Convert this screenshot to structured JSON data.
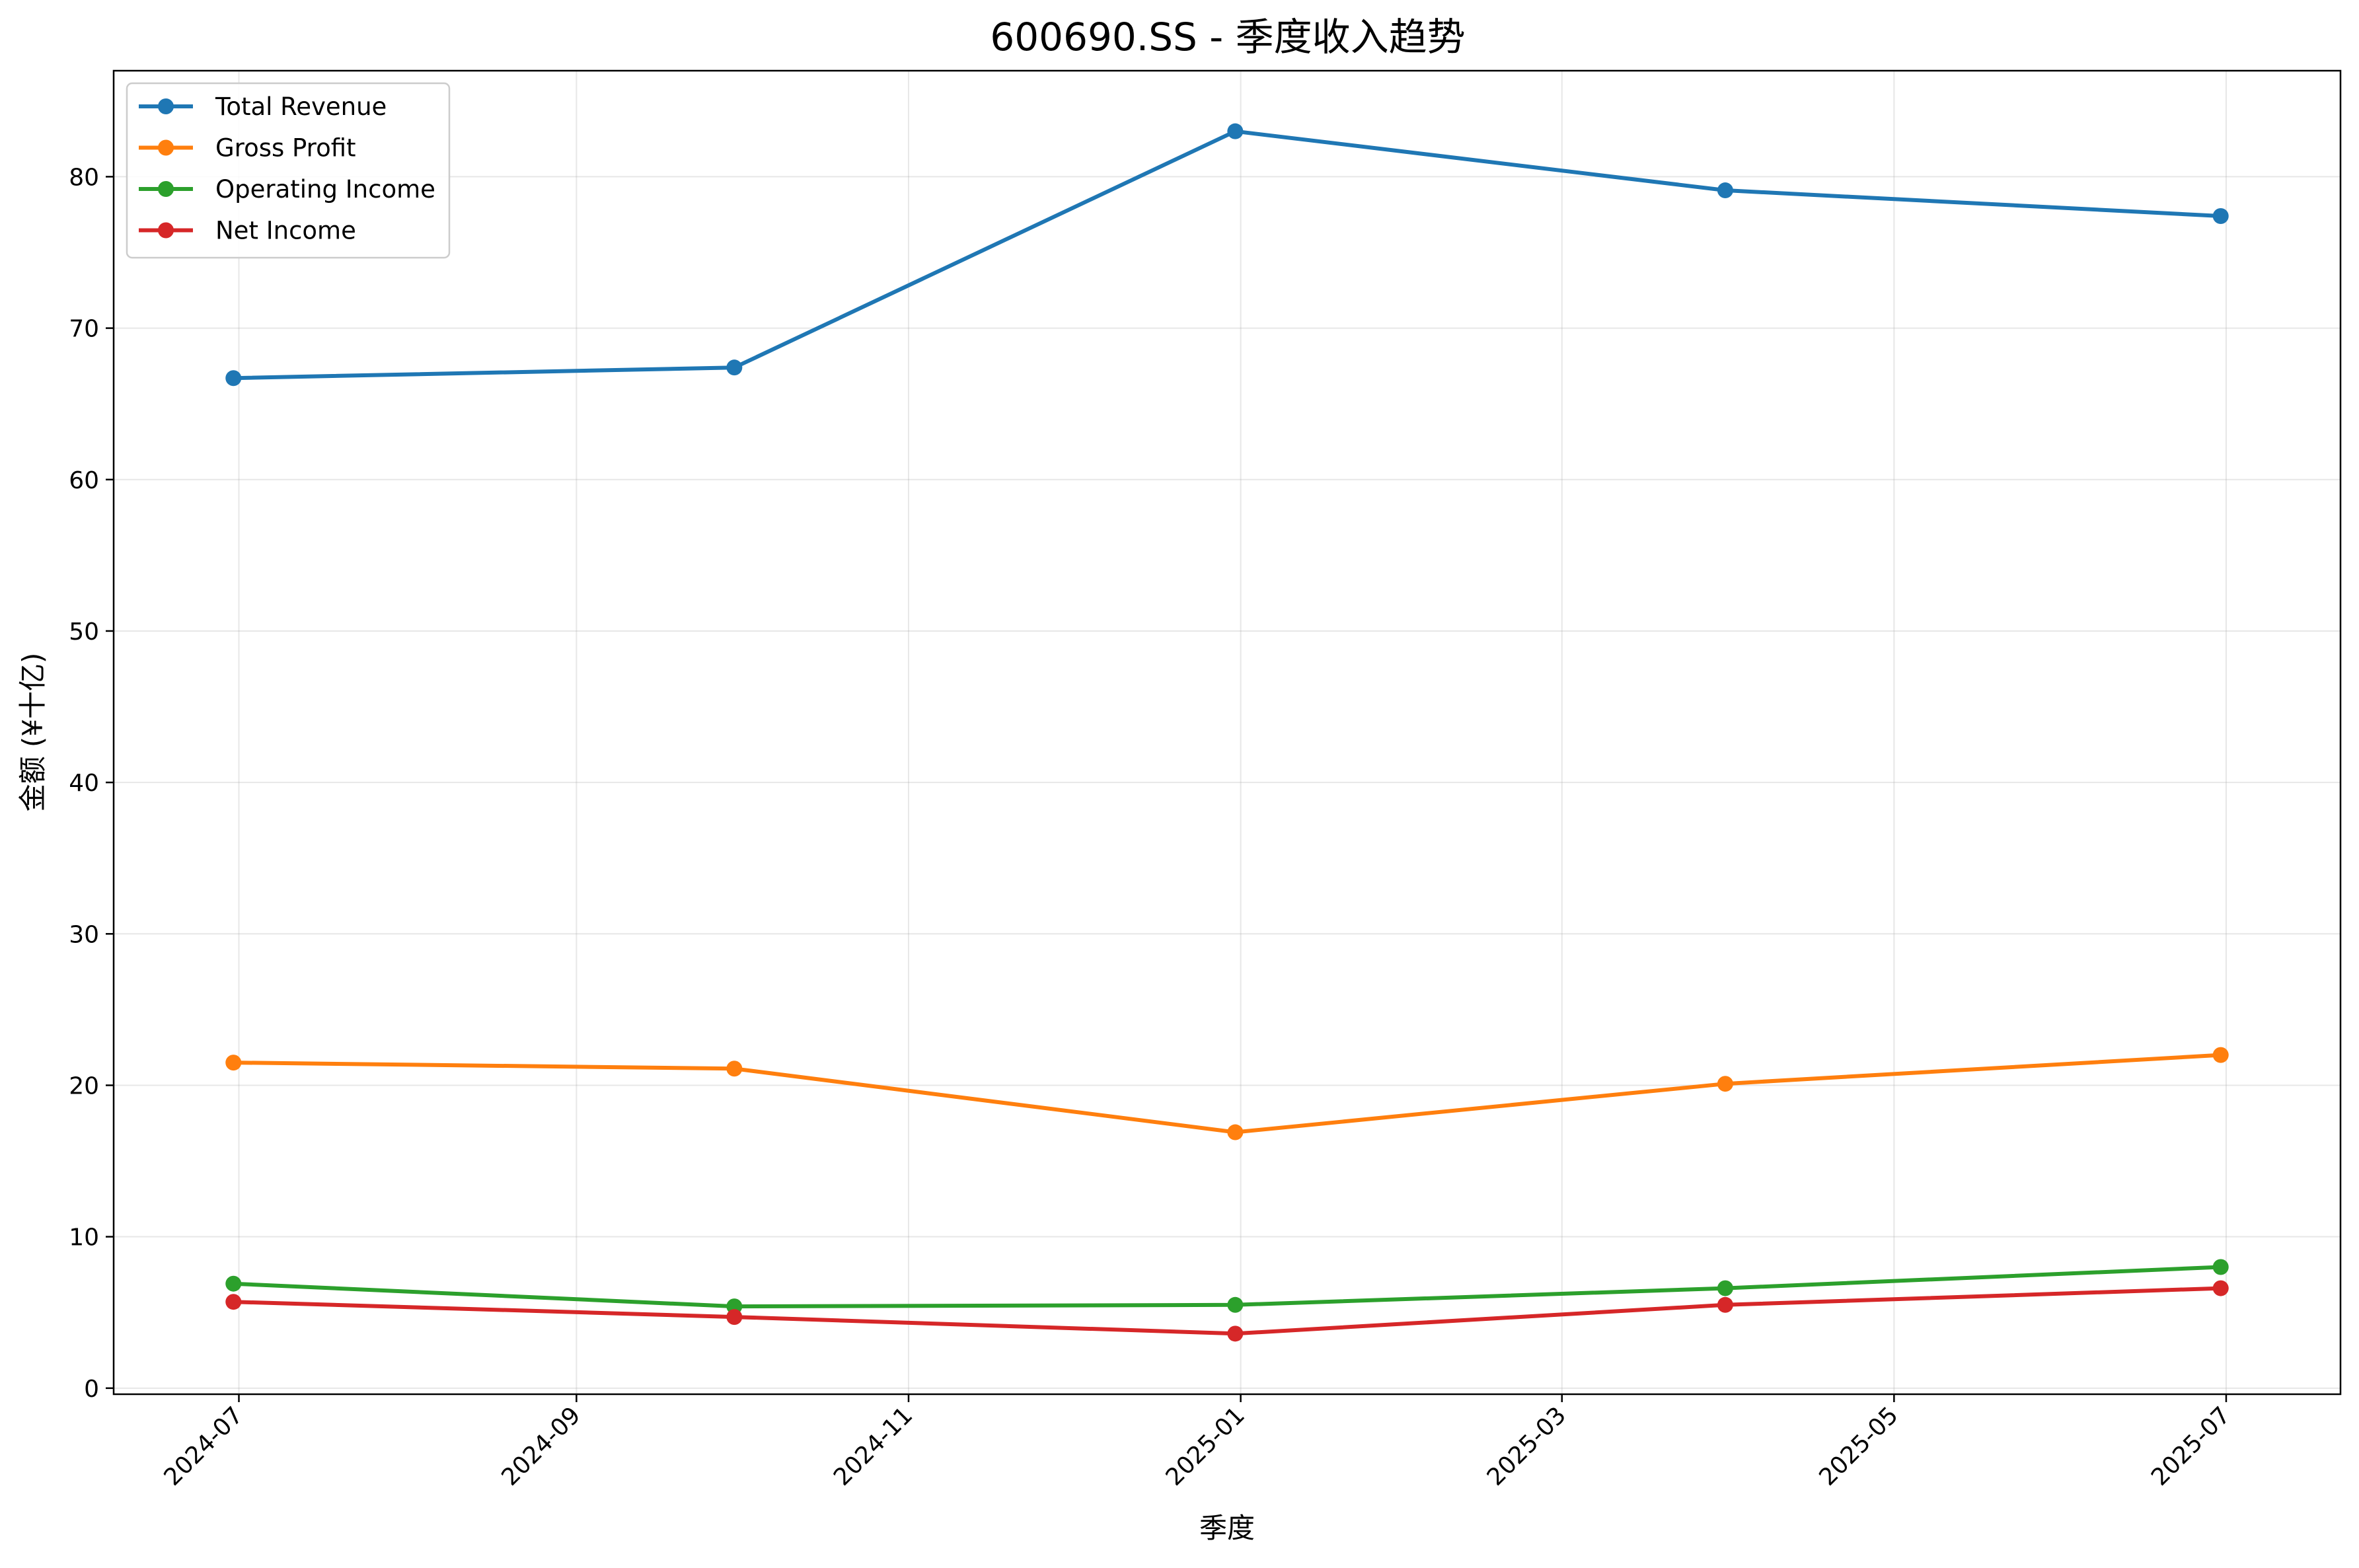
{
  "chart_data": {
    "type": "line",
    "title": "600690.SS - 季度收入趋势",
    "xlabel": "季度",
    "ylabel": "金额 (¥十亿)",
    "x": [
      "2024-06-30",
      "2024-09-30",
      "2024-12-31",
      "2025-03-31",
      "2025-06-30"
    ],
    "xlim": [
      "2024-06-08",
      "2025-07-22"
    ],
    "xticks": [
      "2024-07",
      "2024-09",
      "2024-11",
      "2025-01",
      "2025-03",
      "2025-05",
      "2025-07"
    ],
    "ylim": [
      -0.4,
      87.0
    ],
    "yticks": [
      0,
      10,
      20,
      30,
      40,
      50,
      60,
      70,
      80
    ],
    "grid": true,
    "legend_position": "upper-left",
    "series": [
      {
        "name": "Total Revenue",
        "color": "#1f77b4",
        "values": [
          66.7,
          67.4,
          83.0,
          79.1,
          77.4
        ]
      },
      {
        "name": "Gross Profit",
        "color": "#ff7f0e",
        "values": [
          21.5,
          21.1,
          16.9,
          20.1,
          22.0
        ]
      },
      {
        "name": "Operating Income",
        "color": "#2ca02c",
        "values": [
          6.9,
          5.4,
          5.5,
          6.6,
          8.0
        ]
      },
      {
        "name": "Net Income",
        "color": "#d62728",
        "values": [
          5.7,
          4.7,
          3.6,
          5.5,
          6.6
        ]
      }
    ]
  }
}
